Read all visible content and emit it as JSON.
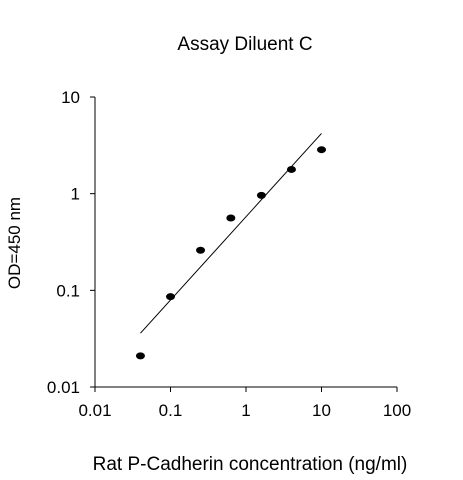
{
  "chart_data": {
    "type": "scatter",
    "title": "Assay Diluent C",
    "xlabel": "Rat P-Cadherin concentration (ng/ml)",
    "ylabel": "OD=450 nm",
    "xscale": "log",
    "yscale": "log",
    "xlim": [
      0.01,
      100
    ],
    "ylim": [
      0.01,
      10
    ],
    "x_ticks": [
      0.01,
      0.1,
      1,
      10,
      100
    ],
    "x_tick_labels": [
      "0.01",
      "0.1",
      "1",
      "10",
      "100"
    ],
    "y_ticks": [
      0.01,
      0.1,
      1,
      10
    ],
    "y_tick_labels": [
      "0.01",
      "0.1",
      "1",
      "10"
    ],
    "grid": false,
    "legend": "none",
    "series": [
      {
        "points": [
          {
            "x": 0.04,
            "y": 0.021
          },
          {
            "x": 0.1,
            "y": 0.086
          },
          {
            "x": 0.25,
            "y": 0.26
          },
          {
            "x": 0.63,
            "y": 0.56
          },
          {
            "x": 1.6,
            "y": 0.96
          },
          {
            "x": 4,
            "y": 1.78
          },
          {
            "x": 10,
            "y": 2.85
          }
        ],
        "color": "#000000"
      }
    ],
    "fit_line": {
      "points": [
        {
          "x": 0.04,
          "y": 0.036
        },
        {
          "x": 10,
          "y": 4.2
        }
      ],
      "color": "#000000"
    }
  }
}
